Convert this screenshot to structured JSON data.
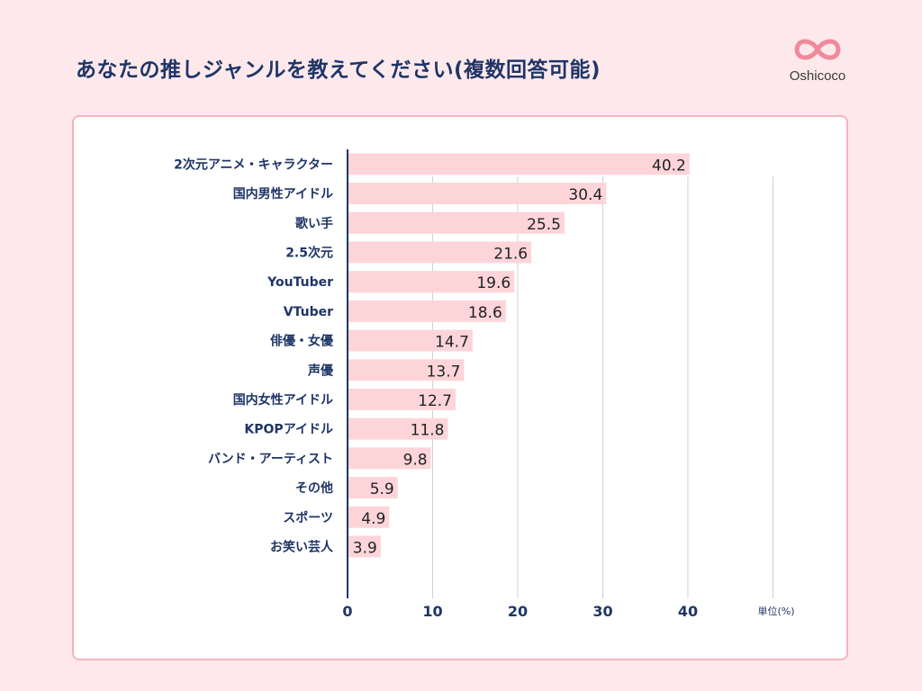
{
  "title": "あなたの推しジャンルを教えてください(複数回答可能)",
  "logo": {
    "text": "Oshicoco",
    "color": "#f08a9a"
  },
  "chart_data": {
    "type": "bar",
    "orientation": "horizontal",
    "categories": [
      "2次元アニメ・キャラクター",
      "国内男性アイドル",
      "歌い手",
      "2.5次元",
      "YouTuber",
      "VTuber",
      "俳優・女優",
      "声優",
      "国内女性アイドル",
      "KPOPアイドル",
      "バンド・アーティスト",
      "その他",
      "スポーツ",
      "お笑い芸人"
    ],
    "values": [
      40.2,
      30.4,
      25.5,
      21.6,
      19.6,
      18.6,
      14.7,
      13.7,
      12.7,
      11.8,
      9.8,
      5.9,
      4.9,
      3.9
    ],
    "value_labels": [
      "40.2",
      "30.4",
      "25.5",
      "21.6",
      "19.6",
      "18.6",
      "14.7",
      "13.7",
      "12.7",
      "11.8",
      "9.8",
      "5.9",
      "4.9",
      "3.9"
    ],
    "xlim": [
      0,
      50
    ],
    "ticks": [
      0,
      10,
      20,
      30,
      40
    ],
    "tick_labels": [
      "0",
      "10",
      "20",
      "30",
      "40"
    ],
    "unit_label": "単位(%)",
    "grid": true,
    "colors": {
      "bar": "#fdd5d9",
      "axis": "#1f3566",
      "grid": "#d0d0d0",
      "text": "#1f3566"
    }
  }
}
